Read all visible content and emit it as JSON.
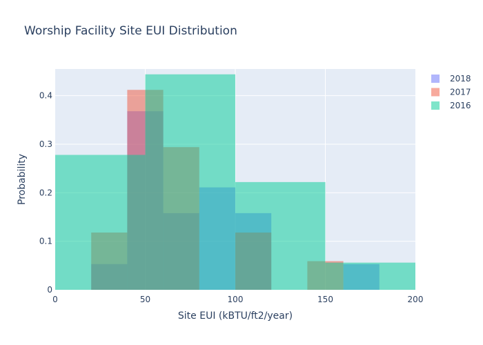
{
  "chart_data": {
    "type": "bar",
    "title": "Worship Facility Site EUI Distribution",
    "xlabel": "Site EUI (kBTU/ft2/year)",
    "ylabel": "Probability",
    "xlim": [
      0,
      200
    ],
    "ylim": [
      0,
      0.455
    ],
    "x_ticks": [
      0,
      50,
      100,
      150,
      200
    ],
    "y_ticks": [
      0,
      0.1,
      0.2,
      0.3,
      0.4
    ],
    "grid": true,
    "legend_position": "top-right",
    "bar_mode": "overlay",
    "series": [
      {
        "name": "2018",
        "color": "#636efa",
        "bins": [
          {
            "x0": 20,
            "x1": 40,
            "value": 0.053
          },
          {
            "x0": 40,
            "x1": 60,
            "value": 0.368
          },
          {
            "x0": 60,
            "x1": 80,
            "value": 0.158
          },
          {
            "x0": 80,
            "x1": 100,
            "value": 0.211
          },
          {
            "x0": 100,
            "x1": 120,
            "value": 0.158
          },
          {
            "x0": 160,
            "x1": 180,
            "value": 0.053
          }
        ]
      },
      {
        "name": "2017",
        "color": "#ef553b",
        "bins": [
          {
            "x0": 20,
            "x1": 40,
            "value": 0.118
          },
          {
            "x0": 40,
            "x1": 60,
            "value": 0.412
          },
          {
            "x0": 60,
            "x1": 80,
            "value": 0.294
          },
          {
            "x0": 100,
            "x1": 120,
            "value": 0.118
          },
          {
            "x0": 140,
            "x1": 160,
            "value": 0.059
          }
        ]
      },
      {
        "name": "2016",
        "color": "#00cc96",
        "bins": [
          {
            "x0": 0,
            "x1": 50,
            "value": 0.278
          },
          {
            "x0": 50,
            "x1": 100,
            "value": 0.444
          },
          {
            "x0": 100,
            "x1": 150,
            "value": 0.222
          },
          {
            "x0": 150,
            "x1": 200,
            "value": 0.056
          }
        ]
      }
    ]
  }
}
